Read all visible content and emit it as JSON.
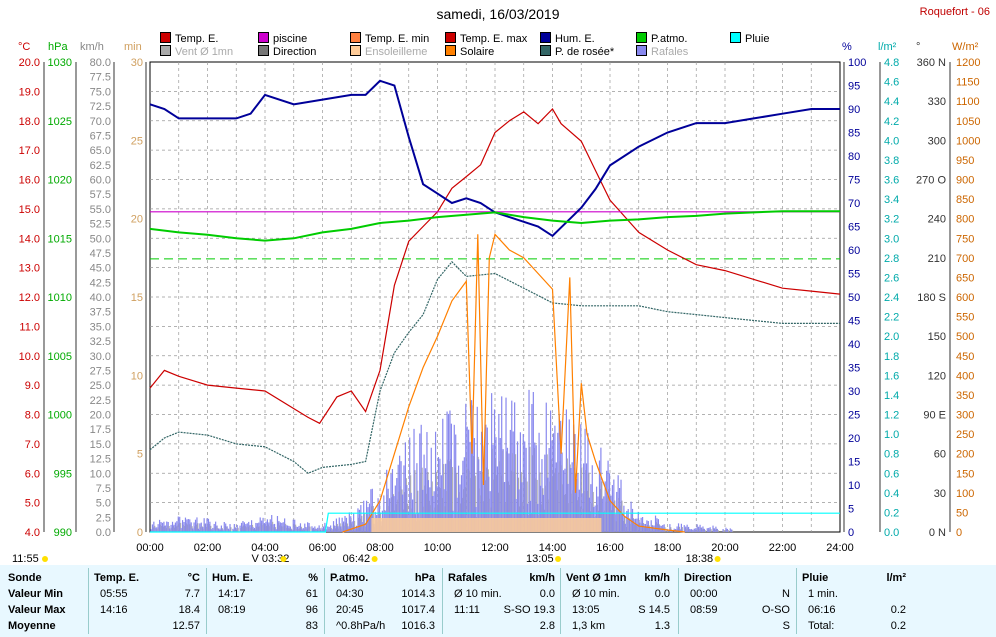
{
  "header": {
    "title": "samedi, 16/03/2019",
    "station": "Roquefort - 06"
  },
  "legend": [
    {
      "label": "Temp. E.",
      "color": "#cc0000"
    },
    {
      "label": "piscine",
      "color": "#cc00cc"
    },
    {
      "label": "Temp. E. min",
      "color": "#ff8040"
    },
    {
      "label": "Temp. E. max",
      "color": "#cc0000"
    },
    {
      "label": "Hum. E.",
      "color": "#000099"
    },
    {
      "label": "P.atmo.",
      "color": "#00cc00"
    },
    {
      "label": "Pluie",
      "color": "#00ffff"
    },
    {
      "label": "Vent Ø 1mn",
      "color": "#aaaaaa"
    },
    {
      "label": "Direction",
      "color": "#777777"
    },
    {
      "label": "Ensoleilleme",
      "color": "#ffcc99"
    },
    {
      "label": "Solaire",
      "color": "#ff8000"
    },
    {
      "label": "P. de rosée*",
      "color": "#336666"
    },
    {
      "label": "Rafales",
      "color": "#8888ee"
    }
  ],
  "units": {
    "temp": "°C",
    "hpa": "hPa",
    "kmh": "km/h",
    "min": "min",
    "pct": "%",
    "lm2": "l/m²",
    "deg": "°",
    "wm2": "W/m²"
  },
  "axis_labels": {
    "temp": [
      "20.0",
      "19.0",
      "18.0",
      "17.0",
      "16.0",
      "15.0",
      "14.0",
      "13.0",
      "12.0",
      "11.0",
      "10.0",
      "9.0",
      "8.0",
      "7.0",
      "6.0",
      "5.0",
      "4.0"
    ],
    "hpa": [
      "1030",
      "1025",
      "1020",
      "1015",
      "1010",
      "1005",
      "1000",
      "995",
      "990"
    ],
    "kmh": [
      "80.0",
      "77.5",
      "75.0",
      "72.5",
      "70.0",
      "67.5",
      "65.0",
      "62.5",
      "60.0",
      "57.5",
      "55.0",
      "52.5",
      "50.0",
      "47.5",
      "45.0",
      "42.5",
      "40.0",
      "37.5",
      "35.0",
      "32.5",
      "30.0",
      "27.5",
      "25.0",
      "22.5",
      "20.0",
      "17.5",
      "15.0",
      "12.5",
      "10.0",
      "7.5",
      "5.0",
      "2.5",
      "0.0"
    ],
    "min": [
      "30",
      "25",
      "20",
      "15",
      "10",
      "5",
      "0"
    ],
    "pct": [
      "100",
      "95",
      "90",
      "85",
      "80",
      "75",
      "70",
      "65",
      "60",
      "55",
      "50",
      "45",
      "40",
      "35",
      "30",
      "25",
      "20",
      "15",
      "10",
      "5",
      "0"
    ],
    "lm2": [
      "4.8",
      "4.6",
      "4.4",
      "4.2",
      "4.0",
      "3.8",
      "3.6",
      "3.4",
      "3.2",
      "3.0",
      "2.8",
      "2.6",
      "2.4",
      "2.2",
      "2.0",
      "1.8",
      "1.6",
      "1.4",
      "1.2",
      "1.0",
      "0.8",
      "0.6",
      "0.4",
      "0.2",
      "0.0"
    ],
    "deg": [
      "360 N",
      "330",
      "300",
      "270 O",
      "240",
      "210",
      "180 S",
      "150",
      "120",
      "90 E",
      "60",
      "30",
      "0 N"
    ],
    "wm2": [
      "1200",
      "1150",
      "1100",
      "1050",
      "1000",
      "950",
      "900",
      "850",
      "800",
      "750",
      "700",
      "650",
      "600",
      "550",
      "500",
      "450",
      "400",
      "350",
      "300",
      "250",
      "200",
      "150",
      "100",
      "50",
      "0"
    ],
    "x": [
      "00:00",
      "02:00",
      "04:00",
      "06:00",
      "08:00",
      "10:00",
      "12:00",
      "14:00",
      "16:00",
      "18:00",
      "20:00",
      "22:00",
      "24:00"
    ]
  },
  "sun_markers": [
    {
      "label": "11:55",
      "hour": -1.2
    },
    {
      "label": "V 03:32",
      "hour": 3.53
    },
    {
      "label": "06:42",
      "hour": 6.7
    },
    {
      "label": "13:05",
      "hour": 13.08
    },
    {
      "label": "18:38",
      "hour": 18.63
    }
  ],
  "chart_data": {
    "type": "line",
    "x_unit": "hour",
    "xlim": [
      0,
      24
    ],
    "series": [
      {
        "name": "Temp. E.",
        "axis": "°C",
        "ylim": [
          4,
          20
        ],
        "color": "#cc0000",
        "x": [
          0,
          0.5,
          1,
          2,
          3,
          4,
          5,
          5.5,
          5.9,
          6.5,
          7,
          7.5,
          8,
          8.5,
          9,
          9.5,
          10,
          10.5,
          11,
          11.5,
          12,
          12.5,
          13,
          13.5,
          14,
          14.3,
          15,
          15.5,
          16,
          17,
          18,
          19,
          20,
          21,
          22,
          23,
          24
        ],
        "y": [
          8.9,
          9.5,
          9.3,
          9.0,
          8.9,
          8.8,
          8.2,
          7.9,
          7.7,
          8.6,
          8.8,
          8.1,
          9.5,
          12.4,
          13.9,
          14.4,
          14.9,
          15.7,
          16.1,
          16.5,
          17.6,
          18.0,
          18.3,
          17.9,
          18.4,
          17.9,
          17.3,
          16.3,
          15.3,
          14.2,
          13.6,
          13.1,
          12.9,
          12.6,
          12.3,
          12.2,
          12.1
        ]
      },
      {
        "name": "piscine",
        "axis": "°C",
        "ylim": [
          4,
          20
        ],
        "color": "#cc00cc",
        "x": [
          0,
          24
        ],
        "y": [
          14.9,
          14.9
        ]
      },
      {
        "name": "Hum. E.",
        "axis": "%",
        "ylim": [
          0,
          100
        ],
        "color": "#000099",
        "x": [
          0,
          0.5,
          1,
          2,
          3,
          3.5,
          4,
          5,
          6,
          7,
          7.5,
          8,
          8.5,
          9,
          9.5,
          10,
          10.5,
          11,
          11.5,
          12,
          12.5,
          13,
          13.5,
          14,
          14.5,
          15,
          15.5,
          16,
          17,
          18,
          19,
          20,
          21,
          22,
          23,
          24
        ],
        "y": [
          91,
          90,
          88,
          88,
          88,
          89,
          93,
          91,
          92,
          93,
          93,
          96,
          95,
          84,
          74,
          72,
          70,
          71,
          70,
          68,
          67,
          66,
          65,
          63,
          66,
          69,
          73,
          78,
          82,
          85,
          87,
          87,
          88,
          89,
          90,
          90
        ]
      },
      {
        "name": "P.atmo.",
        "axis": "hPa",
        "ylim": [
          990,
          1030
        ],
        "color": "#00cc00",
        "x": [
          0,
          1,
          2,
          3,
          4,
          5,
          6,
          7,
          8,
          9,
          10,
          11,
          12,
          13,
          14,
          15,
          16,
          17,
          18,
          19,
          20,
          21,
          22,
          23,
          24
        ],
        "y": [
          1015.8,
          1015.5,
          1015.3,
          1015.0,
          1014.8,
          1015.0,
          1015.5,
          1015.8,
          1016.3,
          1016.5,
          1016.8,
          1017.0,
          1017.2,
          1016.8,
          1016.5,
          1016.3,
          1016.5,
          1016.6,
          1016.8,
          1016.9,
          1017.1,
          1017.2,
          1017.3,
          1017.3,
          1017.3
        ]
      },
      {
        "name": "P. de rosée*",
        "axis": "°C",
        "ylim": [
          4,
          20
        ],
        "color": "#336666",
        "x": [
          0,
          0.5,
          1,
          2,
          3,
          4,
          5,
          5.5,
          6,
          7,
          7.5,
          8,
          8.5,
          9,
          9.5,
          10,
          10.5,
          11,
          12,
          13,
          14,
          15,
          16,
          17,
          18,
          19,
          20,
          21,
          22,
          23,
          24
        ],
        "y": [
          6.8,
          7.2,
          7.4,
          7.3,
          7.0,
          6.9,
          6.4,
          6.0,
          6.2,
          6.3,
          6.4,
          8.8,
          10.1,
          10.8,
          11.4,
          12.6,
          13.2,
          12.7,
          12.8,
          12.3,
          11.8,
          11.7,
          11.7,
          11.7,
          11.5,
          11.4,
          11.3,
          11.2,
          11.1,
          11.1,
          11.1
        ]
      },
      {
        "name": "Solaire",
        "axis": "W/m²",
        "ylim": [
          0,
          1200
        ],
        "color": "#ff8000",
        "x": [
          6.7,
          7.5,
          8,
          8.5,
          9,
          9.5,
          10,
          10.5,
          11,
          11.2,
          11.4,
          11.6,
          11.8,
          12,
          12.5,
          13,
          13.5,
          14,
          14.3,
          14.6,
          14.8,
          15,
          15.2,
          15.5,
          16,
          16.5,
          17,
          18,
          18.6
        ],
        "y": [
          0,
          20,
          80,
          200,
          320,
          420,
          500,
          590,
          640,
          200,
          760,
          120,
          700,
          760,
          720,
          700,
          660,
          620,
          200,
          650,
          100,
          380,
          250,
          180,
          80,
          40,
          15,
          5,
          0
        ]
      },
      {
        "name": "Pluie",
        "axis": "l/m²",
        "ylim": [
          0,
          5
        ],
        "color": "#00ffff",
        "x": [
          0,
          6.1,
          6.2,
          24
        ],
        "y": [
          0,
          0,
          0.2,
          0.2
        ]
      }
    ],
    "reference_lines": [
      {
        "name": "Temp. E. max",
        "axis": "°C",
        "value": 13.3,
        "color": "#00cc00",
        "style": "dashed"
      }
    ],
    "wind": {
      "name": "Rafales",
      "axis": "km/h",
      "ylim": [
        0,
        80
      ],
      "x": [
        0,
        1,
        2,
        3,
        4,
        5,
        6,
        7,
        8,
        9,
        10,
        11,
        12,
        13,
        14,
        15,
        16,
        17,
        18,
        19,
        20,
        21,
        22,
        23,
        24
      ],
      "y": [
        1.5,
        2,
        1.5,
        1,
        2,
        1.5,
        1,
        2.5,
        6,
        11,
        13,
        15,
        16,
        16,
        15,
        12,
        8,
        3,
        1,
        1,
        0.5,
        0,
        0,
        0,
        0
      ]
    }
  },
  "summary": {
    "headers": [
      "Sonde",
      "Temp. E.",
      "°C",
      "Hum. E.",
      "%",
      "P.atmo.",
      "hPa",
      "Rafales",
      "km/h",
      "Vent Ø 1mn",
      "km/h",
      "Direction",
      "Pluie",
      "l/m²"
    ],
    "rows": [
      {
        "label": "Valeur Min",
        "temp_t": "05:55",
        "temp_v": "7.7",
        "hum_t": "14:17",
        "hum_v": "61",
        "pa_t": "04:30",
        "pa_v": "1014.3",
        "raf_t": "Ø 10 min.",
        "raf_v": "0.0",
        "vent_t": "Ø 10 min.",
        "vent_v": "0.0",
        "dir_t": "00:00",
        "dir_v": "N",
        "pluie_t": "1 min.",
        "pluie_v": ""
      },
      {
        "label": "Valeur Max",
        "temp_t": "14:16",
        "temp_v": "18.4",
        "hum_t": "08:19",
        "hum_v": "96",
        "pa_t": "20:45",
        "pa_v": "1017.4",
        "raf_t": "11:11",
        "raf_v": "S-SO 19.3",
        "vent_t": "13:05",
        "vent_v": "S 14.5",
        "dir_t": "08:59",
        "dir_v": "O-SO",
        "pluie_t": "06:16",
        "pluie_v": "0.2"
      },
      {
        "label": "Moyenne",
        "temp_t": "",
        "temp_v": "12.57",
        "hum_t": "",
        "hum_v": "83",
        "pa_t": "^0.8hPa/h",
        "pa_v": "1016.3",
        "raf_t": "",
        "raf_v": "2.8",
        "vent_t": "1,3 km",
        "vent_v": "1.3",
        "dir_t": "",
        "dir_v": "S",
        "pluie_t": "Total:",
        "pluie_v": "0.2"
      }
    ]
  }
}
